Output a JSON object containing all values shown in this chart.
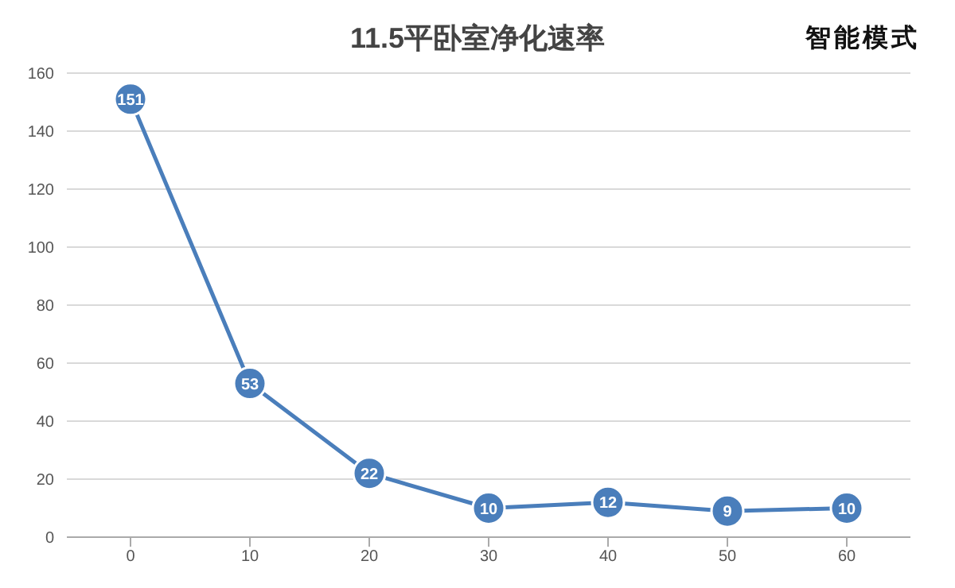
{
  "chart_data": {
    "type": "line",
    "title": "11.5平卧室净化速率",
    "annotations": [
      "智能模式"
    ],
    "categories": [
      "0",
      "10",
      "20",
      "30",
      "40",
      "50",
      "60"
    ],
    "series": [
      {
        "color": "#4a7ebb",
        "values": [
          151,
          53,
          22,
          10,
          12,
          9,
          10
        ]
      }
    ],
    "ylim": [
      0,
      160
    ],
    "yticks": [
      0,
      20,
      40,
      60,
      80,
      100,
      120,
      140,
      160
    ],
    "grid": "y",
    "marker": "circle",
    "line_style": "solid",
    "data_labels": true
  }
}
